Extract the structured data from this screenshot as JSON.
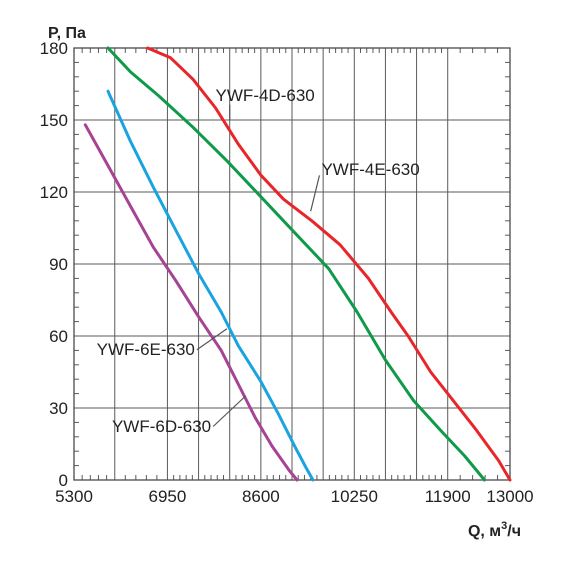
{
  "chart_data": {
    "type": "line",
    "title": "",
    "ylabel": "P, Па",
    "xlabel": {
      "prefix": "Q, м",
      "sup": "3",
      "suffix": "/ч"
    },
    "xlim": [
      5300,
      13000
    ],
    "ylim": [
      0,
      180
    ],
    "xticks": [
      5300,
      6950,
      8600,
      10250,
      11900,
      13000
    ],
    "xtick_labels": [
      "5300",
      "6950",
      "8600",
      "10250",
      "11900",
      "13000"
    ],
    "x_gridlines": [
      5300,
      6020,
      6950,
      7500,
      8050,
      8600,
      9150,
      9700,
      10250,
      10800,
      11350,
      11900,
      13000
    ],
    "yticks": [
      0,
      30,
      60,
      90,
      120,
      150,
      180
    ],
    "ytick_labels": [
      "0",
      "30",
      "60",
      "90",
      "120",
      "150",
      "180"
    ],
    "grid": true,
    "legend": "none",
    "series": [
      {
        "name": "YWF-4D-630",
        "color": "#e8262a",
        "label_pos": {
          "x": 7800,
          "y": 158
        },
        "leader_to": {
          "x": 8050,
          "y": 150
        },
        "points": [
          [
            6600,
            180
          ],
          [
            7000,
            176
          ],
          [
            7400,
            167
          ],
          [
            7800,
            155
          ],
          [
            8200,
            140
          ],
          [
            8600,
            127
          ],
          [
            9000,
            117
          ],
          [
            9500,
            108
          ],
          [
            10000,
            98
          ],
          [
            10500,
            84
          ],
          [
            10900,
            70
          ],
          [
            11200,
            60
          ],
          [
            11600,
            45
          ],
          [
            12000,
            33
          ],
          [
            12400,
            21
          ],
          [
            12800,
            8
          ],
          [
            13000,
            0
          ]
        ]
      },
      {
        "name": "YWF-4E-630",
        "color": "#0e9a48",
        "label_pos": {
          "x": 9670,
          "y": 127
        },
        "leader_to": {
          "x": 9480,
          "y": 112
        },
        "points": [
          [
            5900,
            180
          ],
          [
            6300,
            170
          ],
          [
            6800,
            160
          ],
          [
            7400,
            147
          ],
          [
            8000,
            133
          ],
          [
            8600,
            118
          ],
          [
            9200,
            103
          ],
          [
            9800,
            88
          ],
          [
            10300,
            70
          ],
          [
            10800,
            50
          ],
          [
            11300,
            33
          ],
          [
            11800,
            20
          ],
          [
            12200,
            10
          ],
          [
            12550,
            0
          ]
        ]
      },
      {
        "name": "YWF-6E-630",
        "color": "#1aa3e1",
        "label_pos": {
          "x": 5700,
          "y": 52
        },
        "leader_to": {
          "x": 8000,
          "y": 63
        },
        "points": [
          [
            5900,
            162
          ],
          [
            6300,
            141
          ],
          [
            6700,
            122
          ],
          [
            7100,
            104
          ],
          [
            7500,
            86
          ],
          [
            7900,
            70
          ],
          [
            8200,
            56
          ],
          [
            8600,
            41
          ],
          [
            8900,
            28
          ],
          [
            9200,
            14
          ],
          [
            9400,
            5
          ],
          [
            9520,
            0
          ]
        ]
      },
      {
        "name": "YWF-6D-630",
        "color": "#a64393",
        "label_pos": {
          "x": 5970,
          "y": 20
        },
        "leader_to": {
          "x": 8330,
          "y": 35
        },
        "points": [
          [
            5500,
            148
          ],
          [
            5900,
            131
          ],
          [
            6300,
            114
          ],
          [
            6700,
            97
          ],
          [
            7100,
            83
          ],
          [
            7500,
            68
          ],
          [
            7900,
            54
          ],
          [
            8200,
            40
          ],
          [
            8500,
            26
          ],
          [
            8800,
            14
          ],
          [
            9100,
            4
          ],
          [
            9240,
            0
          ]
        ]
      }
    ]
  }
}
